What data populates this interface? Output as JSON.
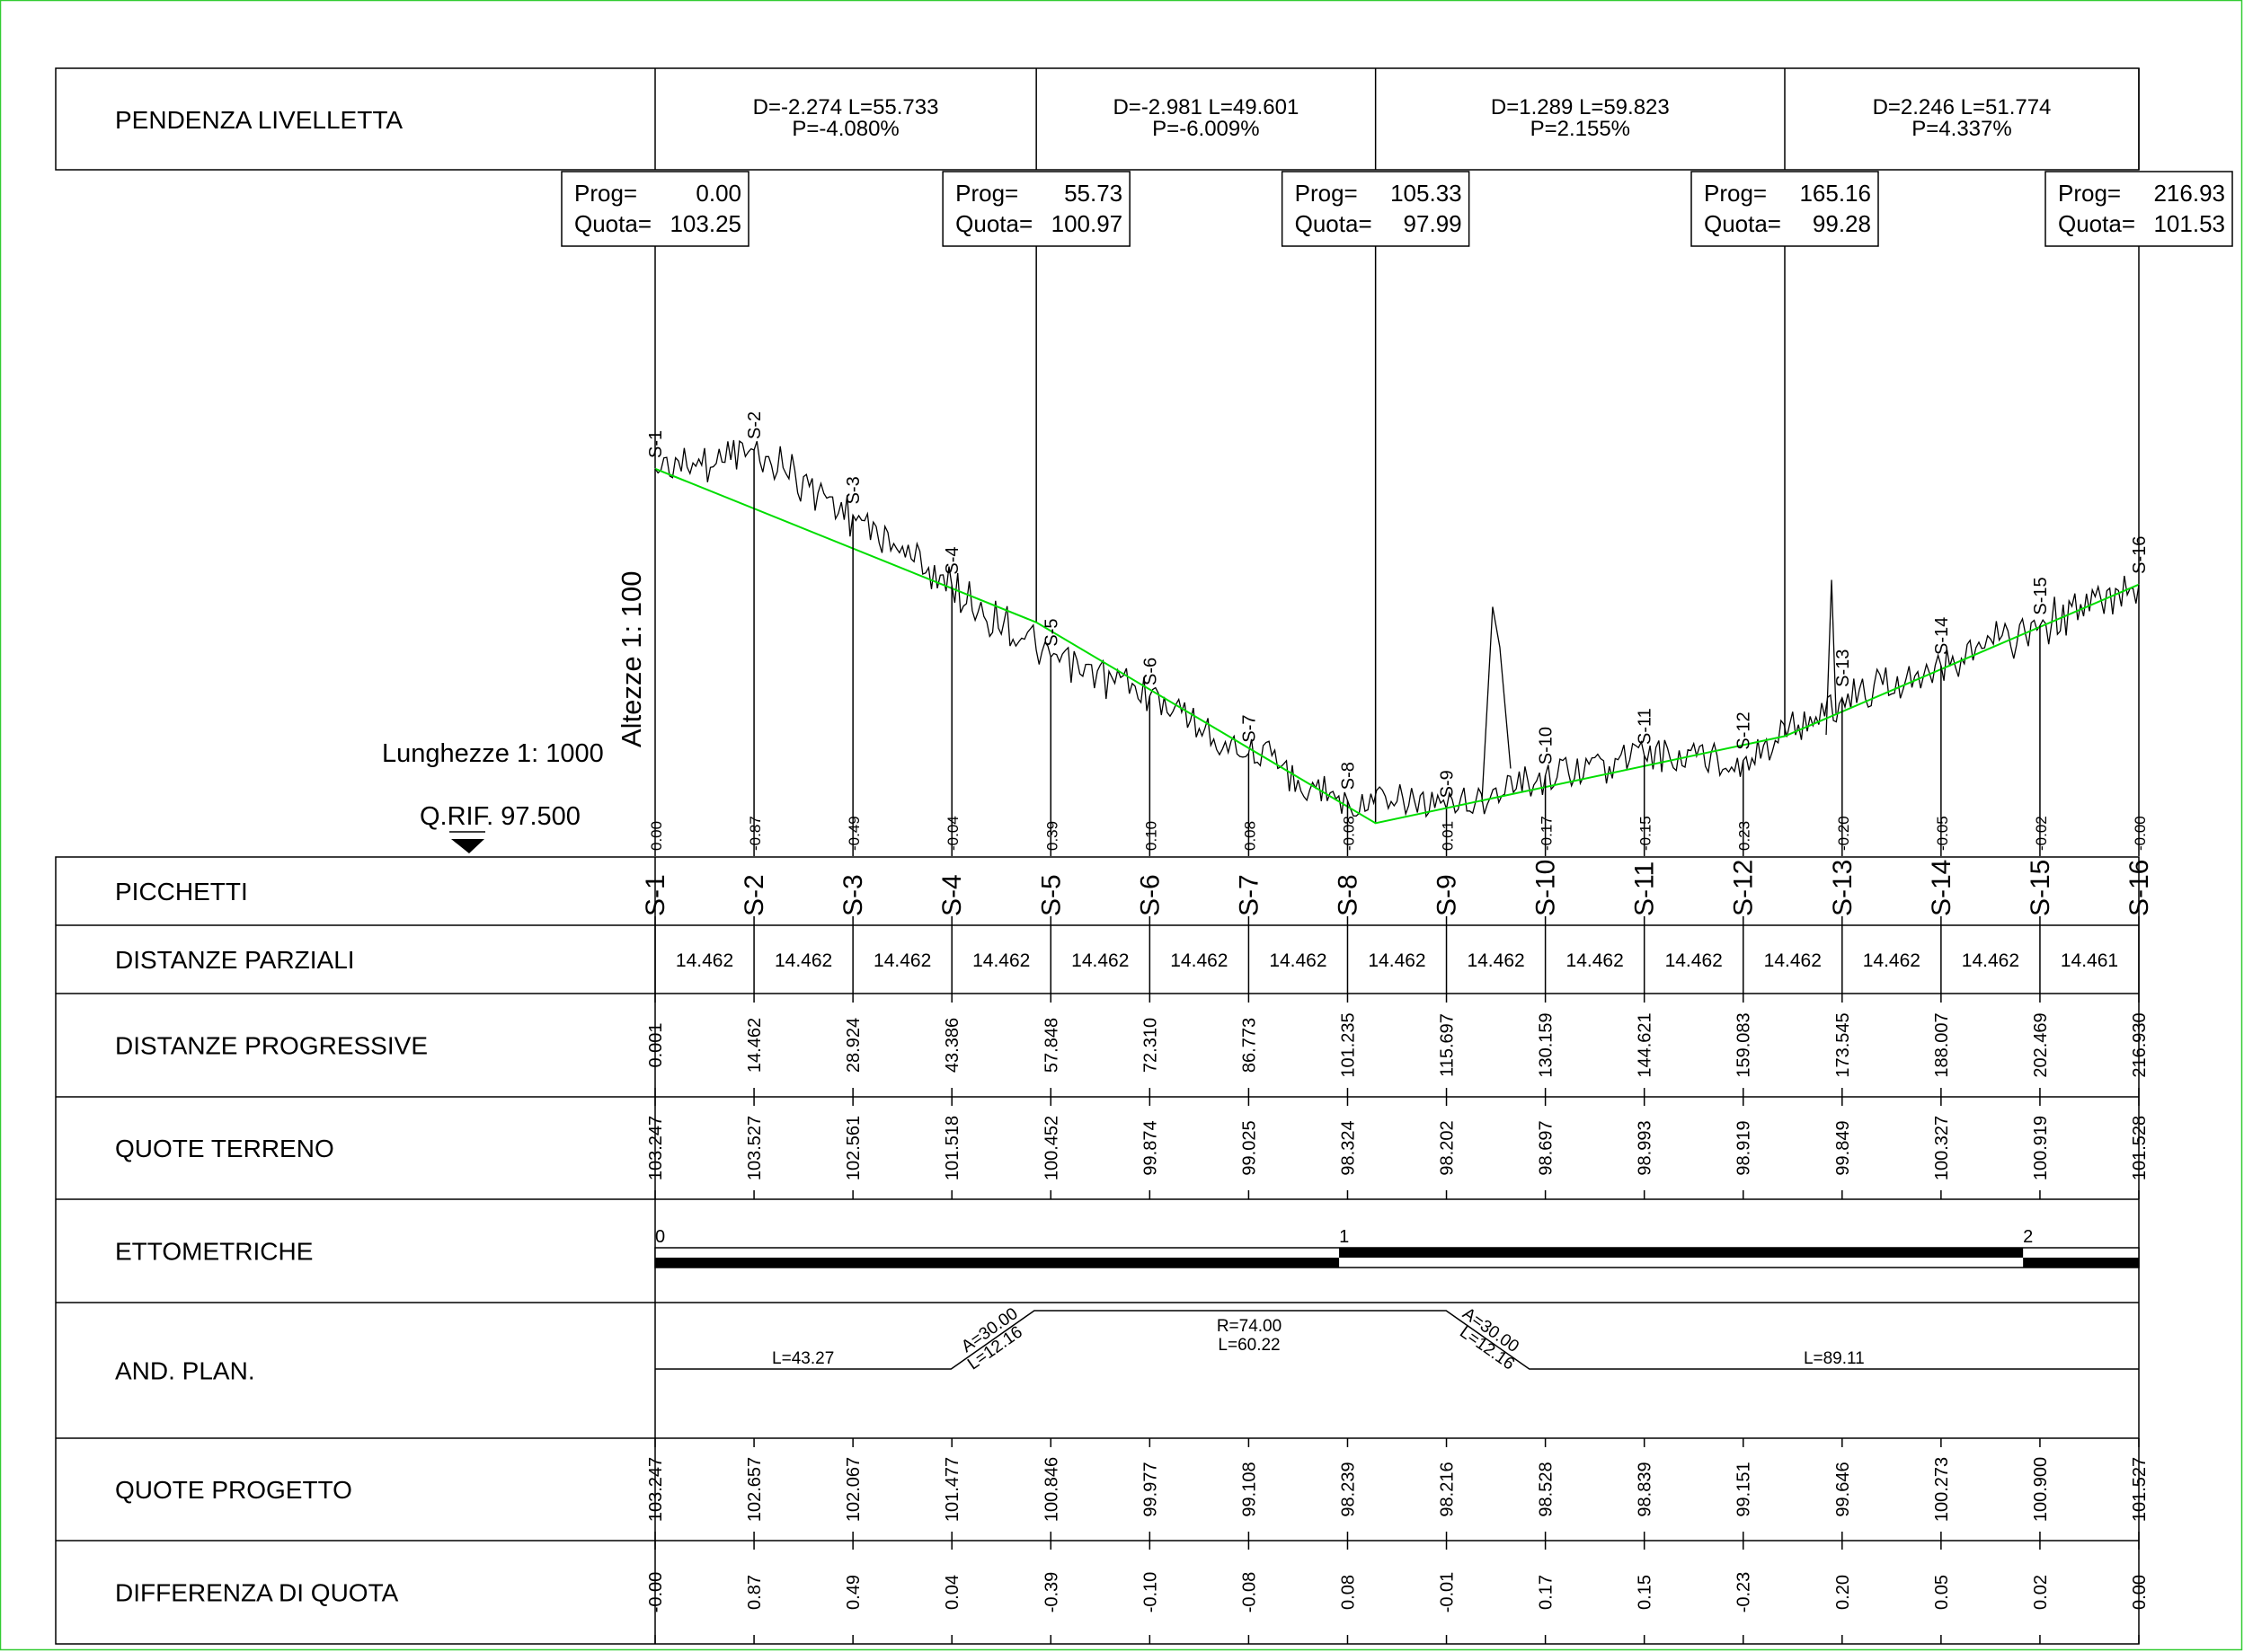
{
  "colors": {
    "ink": "#000000",
    "green_line": "#00dd00",
    "border": "#00c000"
  },
  "labels": {
    "pendenza": "PENDENZA LIVELLETTA",
    "picchetti": "PICCHETTI",
    "dist_parziali": "DISTANZE PARZIALI",
    "dist_progressive": "DISTANZE PROGRESSIVE",
    "quote_terreno": "QUOTE TERRENO",
    "ettometriche": "ETTOMETRICHE",
    "and_plan": "AND. PLAN.",
    "quote_progetto": "QUOTE PROGETTO",
    "differenza": "DIFFERENZA DI QUOTA"
  },
  "scales": {
    "altezze": "Altezze 1: 100",
    "lunghezze": "Lunghezze 1: 1000",
    "qrif": "Q.RIF. 97.500"
  },
  "grades": [
    {
      "d": "D=-2.274 L=55.733",
      "p": "P=-4.080%"
    },
    {
      "d": "D=-2.981 L=49.601",
      "p": "P=-6.009%"
    },
    {
      "d": "D=1.289 L=59.823",
      "p": "P=2.155%"
    },
    {
      "d": "D=2.246 L=51.774",
      "p": "P=4.337%"
    }
  ],
  "vertices": [
    {
      "prog_label": "Prog=",
      "prog": "0.00",
      "quota_label": "Quota=",
      "quota": "103.25"
    },
    {
      "prog_label": "Prog=",
      "prog": "55.73",
      "quota_label": "Quota=",
      "quota": "100.97"
    },
    {
      "prog_label": "Prog=",
      "prog": "105.33",
      "quota_label": "Quota=",
      "quota": "97.99"
    },
    {
      "prog_label": "Prog=",
      "prog": "165.16",
      "quota_label": "Quota=",
      "quota": "99.28"
    },
    {
      "prog_label": "Prog=",
      "prog": "216.93",
      "quota_label": "Quota=",
      "quota": "101.53"
    }
  ],
  "stations": [
    "S-1",
    "S-2",
    "S-3",
    "S-4",
    "S-5",
    "S-6",
    "S-7",
    "S-8",
    "S-9",
    "S-10",
    "S-11",
    "S-12",
    "S-13",
    "S-14",
    "S-15",
    "S-16"
  ],
  "partial_distances": [
    "14.462",
    "14.462",
    "14.462",
    "14.462",
    "14.462",
    "14.462",
    "14.462",
    "14.462",
    "14.462",
    "14.462",
    "14.462",
    "14.462",
    "14.462",
    "14.462",
    "14.461"
  ],
  "progressive_distances": [
    "0.001",
    "14.462",
    "28.924",
    "43.386",
    "57.848",
    "72.310",
    "86.773",
    "101.235",
    "115.697",
    "130.159",
    "144.621",
    "159.083",
    "173.545",
    "188.007",
    "202.469",
    "216.930"
  ],
  "ground_elevations": [
    "103.247",
    "103.527",
    "102.561",
    "101.518",
    "100.452",
    "99.874",
    "99.025",
    "98.324",
    "98.202",
    "98.697",
    "98.993",
    "98.919",
    "99.849",
    "100.327",
    "100.919",
    "101.528"
  ],
  "design_elevations": [
    "103.247",
    "102.657",
    "102.067",
    "101.477",
    "100.846",
    "99.977",
    "99.108",
    "98.239",
    "98.216",
    "98.528",
    "98.839",
    "99.151",
    "99.646",
    "100.273",
    "100.900",
    "101.527"
  ],
  "differences": [
    "-0.00",
    "0.87",
    "0.49",
    "0.04",
    "-0.39",
    "-0.10",
    "-0.08",
    "0.08",
    "-0.01",
    "0.17",
    "0.15",
    "-0.23",
    "0.20",
    "0.05",
    "0.02",
    "0.00"
  ],
  "profile_diffs": [
    "0.00",
    "-0.87",
    "-0.49",
    "-0.04",
    "0.39",
    "0.10",
    "0.08",
    "-0.08",
    "0.01",
    "-0.17",
    "-0.15",
    "0.23",
    "-0.20",
    "-0.05",
    "-0.02",
    "-0.00"
  ],
  "hectometric": [
    "0",
    "1",
    "2"
  ],
  "alignment": [
    {
      "lines": [
        "L=43.27"
      ]
    },
    {
      "lines": [
        "A=30.00",
        "L=12.16"
      ]
    },
    {
      "lines": [
        "R=74.00",
        "L=60.22"
      ]
    },
    {
      "lines": [
        "A=30.00",
        "L=12.16"
      ]
    },
    {
      "lines": [
        "L=89.11"
      ]
    }
  ],
  "chart_data": {
    "type": "line",
    "xlabel": "",
    "ylabel": "",
    "x_range": [
      0,
      216.93
    ],
    "y_range": [
      97.5,
      104.4
    ],
    "series": [
      {
        "name": "",
        "x": [
          0,
          14.462,
          28.924,
          43.386,
          57.848,
          72.31,
          86.773,
          101.235,
          115.697,
          130.159,
          144.621,
          159.083,
          173.545,
          188.007,
          202.469,
          216.93
        ],
        "y": [
          103.247,
          103.527,
          102.561,
          101.518,
          100.452,
          99.874,
          99.025,
          98.324,
          98.202,
          98.697,
          98.993,
          98.919,
          99.849,
          100.327,
          100.919,
          101.528
        ]
      },
      {
        "name": "",
        "x": [
          0,
          55.73,
          105.33,
          165.16,
          216.93
        ],
        "y": [
          103.25,
          100.97,
          97.99,
          99.28,
          101.53
        ]
      }
    ]
  }
}
